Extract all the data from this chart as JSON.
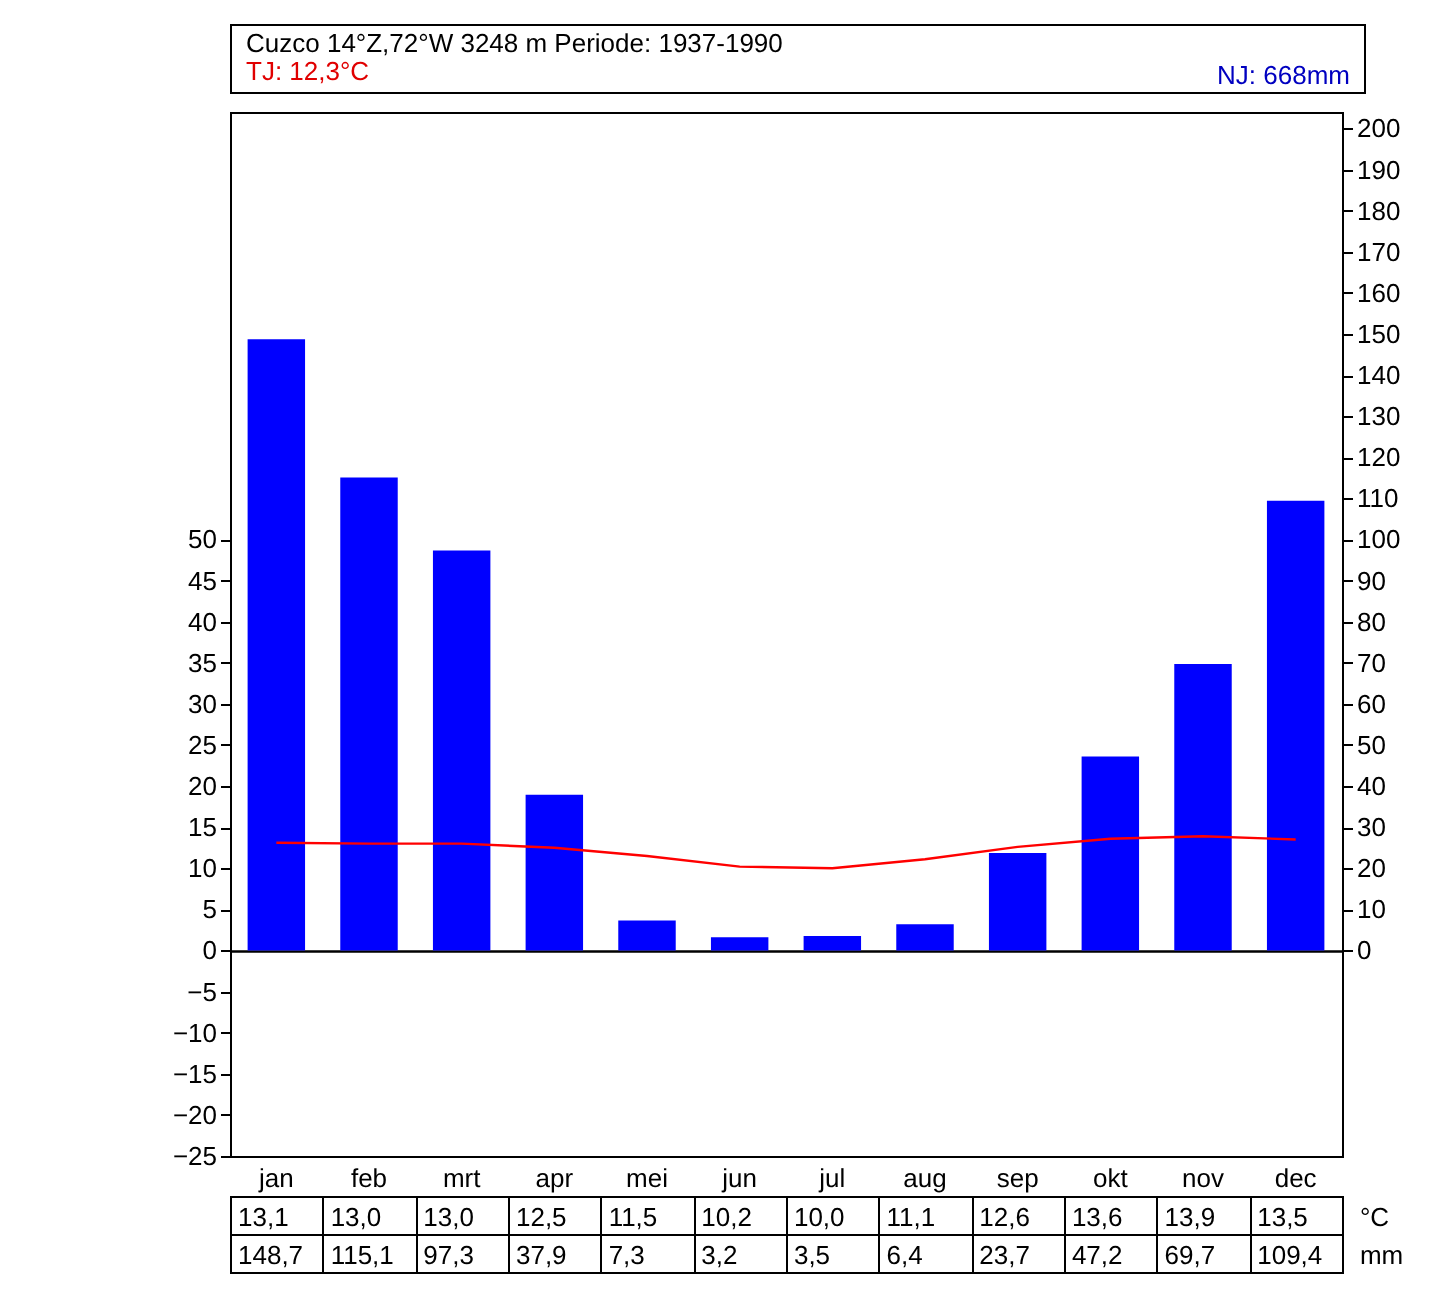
{
  "chart_data": {
    "type": "bar",
    "title": "Cuzco  14°Z,72°W  3248 m  Periode: 1937-1990",
    "annotations": [
      "TJ: 12,3°C",
      "NJ: 668mm",
      "°C",
      "mm"
    ],
    "categories": [
      "jan",
      "feb",
      "mrt",
      "apr",
      "mei",
      "jun",
      "jul",
      "aug",
      "sep",
      "okt",
      "nov",
      "dec"
    ],
    "series": [
      {
        "type": "line",
        "axis": "y",
        "color": "#ff0000",
        "values": [
          13.1,
          13.0,
          13.0,
          12.5,
          11.5,
          10.2,
          10.0,
          11.1,
          12.6,
          13.6,
          13.9,
          13.5
        ],
        "value_labels": [
          "13,1",
          "13,0",
          "13,0",
          "12,5",
          "11,5",
          "10,2",
          "10,0",
          "11,1",
          "12,6",
          "13,6",
          "13,9",
          "13,5"
        ]
      },
      {
        "axis": "y2",
        "color": "#0000ff",
        "values": [
          148.7,
          115.1,
          97.3,
          37.9,
          7.3,
          3.2,
          3.5,
          6.4,
          23.7,
          47.2,
          69.7,
          109.4
        ],
        "value_labels": [
          "148,7",
          "115,1",
          "97,3",
          "37,9",
          "7,3",
          "3,2",
          "3,5",
          "6,4",
          "23,7",
          "47,2",
          "69,7",
          "109,4"
        ]
      }
    ],
    "ylim": [
      -25,
      102
    ],
    "yticks": [
      -25,
      -20,
      -15,
      -10,
      -5,
      0,
      5,
      10,
      15,
      20,
      25,
      30,
      35,
      40,
      45,
      50
    ],
    "y2lim": [
      -50,
      204
    ],
    "y2ticks": [
      0,
      10,
      20,
      30,
      40,
      50,
      60,
      70,
      80,
      90,
      100,
      110,
      120,
      130,
      140,
      150,
      160,
      170,
      180,
      190,
      200
    ]
  }
}
